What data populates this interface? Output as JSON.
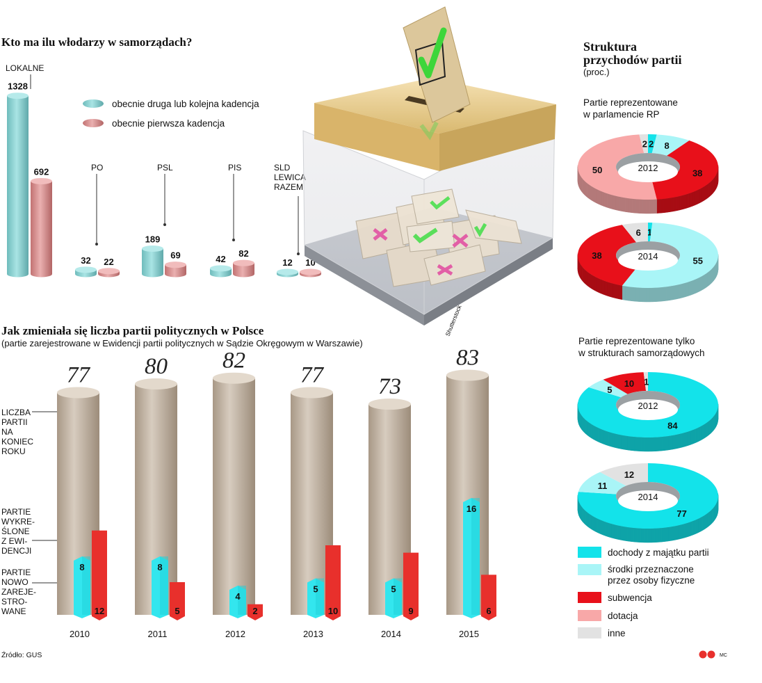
{
  "chart_data": [
    {
      "type": "bar",
      "title": "Kto ma ilu włodarzy w samorządach?",
      "categories": [
        "LOKALNE",
        "PO",
        "PSL",
        "PIS",
        "SLD LEWICA RAZEM"
      ],
      "series": [
        {
          "name": "obecnie druga lub kolejna kadencja",
          "values": [
            1328,
            32,
            189,
            42,
            12
          ]
        },
        {
          "name": "obecnie pierwsza kadencja",
          "values": [
            692,
            22,
            69,
            82,
            10
          ]
        }
      ],
      "colors": [
        "#8fd3d3",
        "#d98f8f"
      ]
    },
    {
      "type": "bar",
      "title": "Jak zmieniała się liczba partii politycznych w Polsce",
      "subtitle": "(partie zarejestrowane w Ewidencji partii politycznych w Sądzie Okręgowym w Warszawie)",
      "categories": [
        "2010",
        "2011",
        "2012",
        "2013",
        "2014",
        "2015"
      ],
      "series": [
        {
          "name": "LICZBA PARTII NA KONIEC ROKU",
          "values": [
            77,
            80,
            82,
            77,
            73,
            83
          ]
        },
        {
          "name": "PARTIE NOWO ZAREJESTROWANE",
          "values": [
            8,
            8,
            4,
            5,
            5,
            16
          ]
        },
        {
          "name": "PARTIE WYKREŚLONE Z EWIDENCJI",
          "values": [
            12,
            5,
            2,
            10,
            9,
            6
          ]
        }
      ],
      "colors": [
        "#bfb1a1",
        "#33e6ee",
        "#e8302c"
      ]
    },
    {
      "type": "pie",
      "title": "Struktura przychodów partii",
      "subtitle": "(proc.)",
      "groups": [
        {
          "label": "Partie reprezentowane w parlamencie RP",
          "charts": [
            {
              "year": "2012",
              "slices": [
                {
                  "category": "dochody z majątku partii",
                  "value": 2
                },
                {
                  "category": "środki przeznaczone przez osoby fizyczne",
                  "value": 8
                },
                {
                  "category": "subwencja",
                  "value": 38
                },
                {
                  "category": "dotacja",
                  "value": 50
                },
                {
                  "category": "inne",
                  "value": 2
                }
              ]
            },
            {
              "year": "2014",
              "slices": [
                {
                  "category": "dochody z majątku partii",
                  "value": 1
                },
                {
                  "category": "środki przeznaczone przez osoby fizyczne",
                  "value": 55
                },
                {
                  "category": "subwencja",
                  "value": 38
                },
                {
                  "category": "dotacja",
                  "value": 0
                },
                {
                  "category": "inne",
                  "value": 6
                }
              ]
            }
          ]
        },
        {
          "label": "Partie reprezentowane tylko w strukturach samorządowych",
          "charts": [
            {
              "year": "2012",
              "slices": [
                {
                  "category": "dochody z majątku partii",
                  "value": 84
                },
                {
                  "category": "środki przeznaczone przez osoby fizyczne",
                  "value": 5
                },
                {
                  "category": "subwencja",
                  "value": 10
                },
                {
                  "category": "dotacja",
                  "value": 0
                },
                {
                  "category": "inne",
                  "value": 1
                }
              ]
            },
            {
              "year": "2014",
              "slices": [
                {
                  "category": "dochody z majątku partii",
                  "value": 77
                },
                {
                  "category": "środki przeznaczone przez osoby fizyczne",
                  "value": 11
                },
                {
                  "category": "subwencja",
                  "value": 0
                },
                {
                  "category": "dotacja",
                  "value": 0
                },
                {
                  "category": "inne",
                  "value": 12
                }
              ]
            }
          ]
        }
      ]
    }
  ],
  "text": {
    "title1": "Kto ma ilu włodarzy w samorządach?",
    "legend1_a": "obecnie druga lub kolejna kadencja",
    "legend1_b": "obecnie pierwsza kadencja",
    "cat_lokalne": "LOKALNE",
    "cat_po": "PO",
    "cat_psl": "PSL",
    "cat_pis": "PIS",
    "cat_sld_1": "SLD",
    "cat_sld_2": "LEWICA",
    "cat_sld_3": "RAZEM",
    "title2": "Jak zmieniała się liczba partii politycznych w Polsce",
    "subtitle2": "(partie zarejestrowane w Ewidencji partii politycznych w Sądzie Okręgowym w Warszawie)",
    "label_liczba": [
      "LICZBA",
      "PARTII",
      "NA",
      "KONIEC",
      "ROKU"
    ],
    "label_wykr": [
      "PARTIE",
      "WYKRE-",
      "ŚLONE",
      "Z EWI-",
      "DENCJI"
    ],
    "label_nowo": [
      "PARTIE",
      "NOWO",
      "ZAREJE-",
      "STRO-",
      "WANE"
    ],
    "title3_1": "Struktura",
    "title3_2": "przychodów partii",
    "subtitle3": "(proc.)",
    "group1_1": "Partie reprezentowane",
    "group1_2": "w parlamencie RP",
    "group2_1": "Partie reprezentowane tylko",
    "group2_2": "w strukturach samorządowych",
    "legend3": [
      "dochody z majątku partii",
      "środki przeznaczone",
      "przez osoby fizyczne",
      "subwencja",
      "dotacja",
      "inne"
    ],
    "source": "Źródło: GUS",
    "watermark": "Shutterstock",
    "credit": "MC"
  },
  "colors": {
    "teal1": "#8fd3d3",
    "rose1": "#d98f8f",
    "tan": "#bfb1a1",
    "cyan": "#33e6ee",
    "red": "#e8302c",
    "d_majatek": "#13e3ea",
    "d_osoby": "#a9f5f7",
    "d_subw": "#e8101a",
    "d_dot": "#f8a8a8",
    "d_inne": "#e2e2e2"
  }
}
